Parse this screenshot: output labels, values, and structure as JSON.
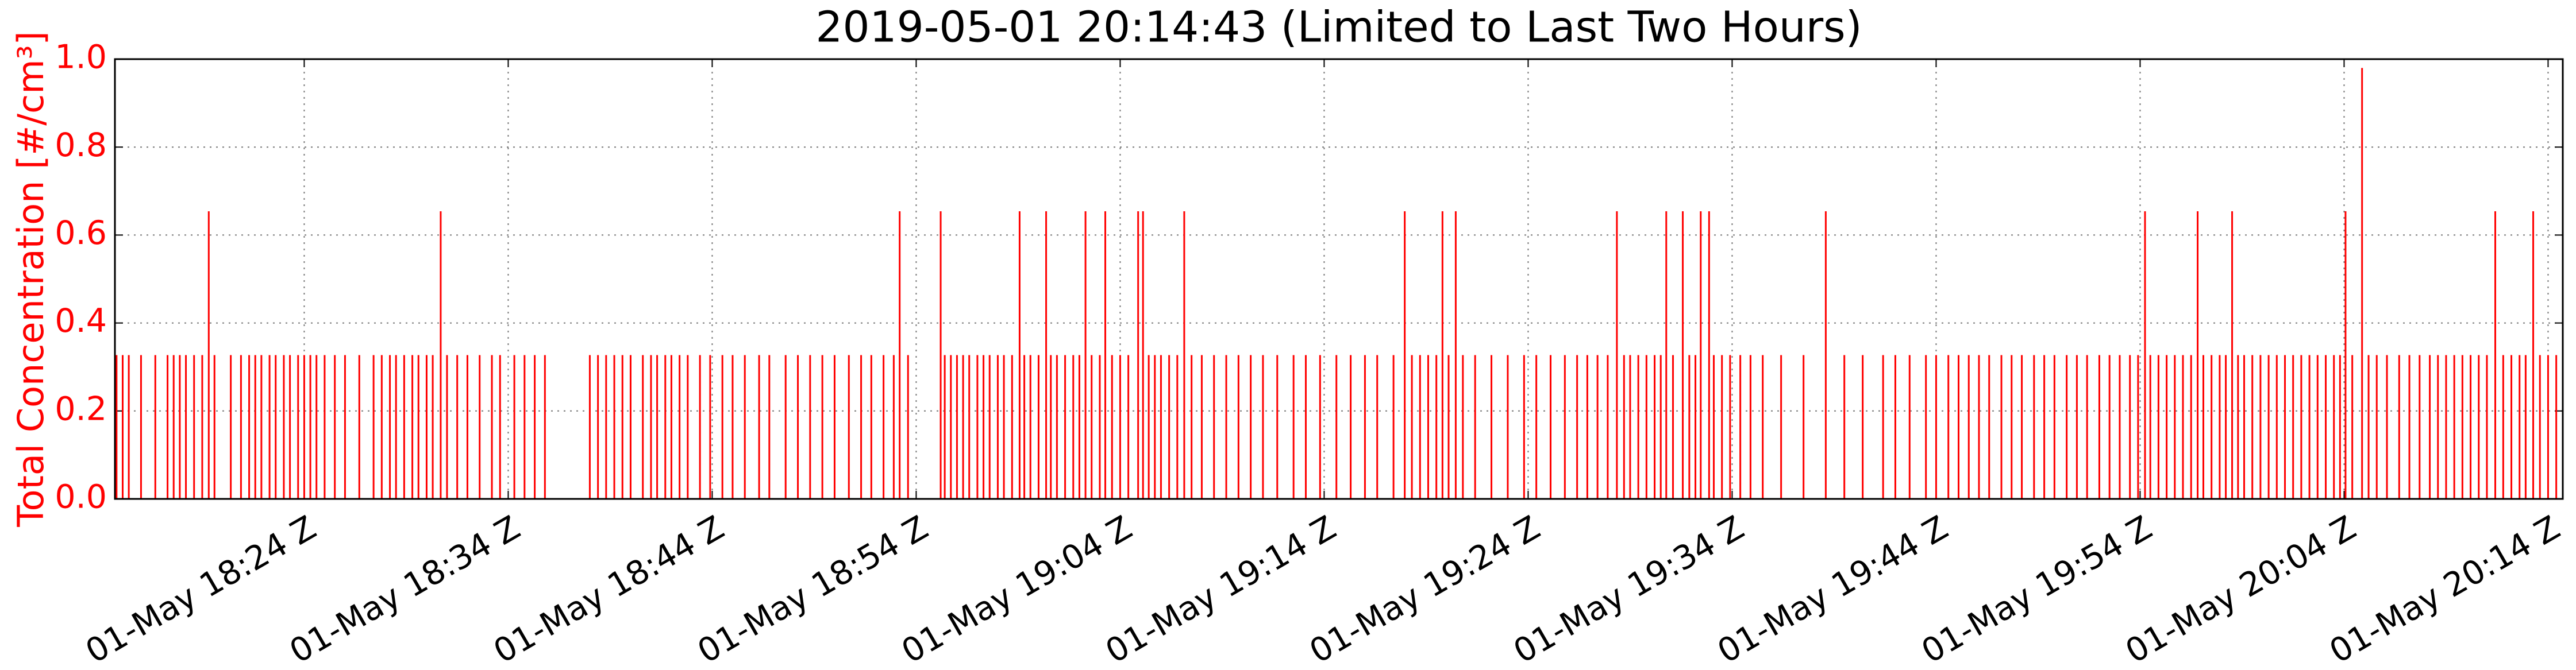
{
  "chart_data": {
    "type": "stem",
    "title": "2019-05-01 20:14:43 (Limited to Last Two Hours)",
    "y_label": "Total Concentration [#/cm³]",
    "color": "#ff0000",
    "label_color": "#ff0000",
    "grid": true,
    "xlim": [
      1094.72,
      1214.72
    ],
    "ylim": [
      0,
      1
    ],
    "yticks": [
      {
        "value": 0,
        "label": "0.0"
      },
      0.2,
      0.4,
      0.6,
      0.8,
      {
        "value": 1,
        "label": "1.0"
      }
    ],
    "xticks": [
      {
        "value": 1104,
        "label": "01-May 18:24 Z"
      },
      {
        "value": 1114,
        "label": "01-May 18:34 Z"
      },
      {
        "value": 1124,
        "label": "01-May 18:44 Z"
      },
      {
        "value": 1134,
        "label": "01-May 18:54 Z"
      },
      {
        "value": 1144,
        "label": "01-May 19:04 Z"
      },
      {
        "value": 1154,
        "label": "01-May 19:14 Z"
      },
      {
        "value": 1164,
        "label": "01-May 19:24 Z"
      },
      {
        "value": 1174,
        "label": "01-May 19:34 Z"
      },
      {
        "value": 1184,
        "label": "01-May 19:44 Z"
      },
      {
        "value": 1194,
        "label": "01-May 19:54 Z"
      },
      {
        "value": 1204,
        "label": "01-May 20:04 Z"
      },
      {
        "value": 1214,
        "label": "01-May 20:14 Z"
      }
    ],
    "x": [
      1094.8,
      1095.1,
      1095.4,
      1096.0,
      1096.7,
      1097.3,
      1097.6,
      1097.9,
      1098.2,
      1098.6,
      1099.0,
      1099.6,
      1100.4,
      1100.9,
      1101.3,
      1101.6,
      1101.9,
      1102.3,
      1102.6,
      1103.0,
      1103.3,
      1103.7,
      1104.0,
      1104.3,
      1104.6,
      1105.0,
      1105.5,
      1106.0,
      1106.7,
      1107.4,
      1107.8,
      1108.2,
      1108.5,
      1108.9,
      1109.3,
      1109.6,
      1110.0,
      1110.3,
      1111.0,
      1111.5,
      1112.0,
      1112.6,
      1113.2,
      1113.6,
      1114.3,
      1114.8,
      1115.3,
      1115.8,
      1118.0,
      1118.4,
      1118.8,
      1119.2,
      1119.6,
      1120.0,
      1120.6,
      1121.0,
      1121.3,
      1121.7,
      1122.0,
      1122.4,
      1122.8,
      1123.4,
      1123.9,
      1124.5,
      1125.0,
      1125.6,
      1126.3,
      1126.8,
      1127.6,
      1128.2,
      1128.8,
      1129.4,
      1130.0,
      1130.7,
      1131.3,
      1131.8,
      1132.4,
      1132.9,
      1133.6,
      1135.4,
      1135.7,
      1136.0,
      1136.3,
      1136.6,
      1137.0,
      1137.3,
      1137.6,
      1138.0,
      1138.3,
      1138.7,
      1139.3,
      1139.6,
      1140.0,
      1140.6,
      1140.9,
      1141.3,
      1141.7,
      1142.0,
      1142.6,
      1143.0,
      1143.6,
      1144.0,
      1144.4,
      1145.4,
      1145.7,
      1146.0,
      1146.4,
      1146.8,
      1147.5,
      1148.0,
      1148.6,
      1149.2,
      1149.8,
      1150.4,
      1151.0,
      1151.7,
      1152.5,
      1153.1,
      1153.8,
      1154.6,
      1155.3,
      1156.0,
      1156.6,
      1157.4,
      1158.3,
      1158.7,
      1159.1,
      1159.5,
      1160.1,
      1160.8,
      1161.4,
      1162.2,
      1163.0,
      1163.8,
      1164.4,
      1165.1,
      1165.8,
      1166.4,
      1166.9,
      1167.4,
      1167.9,
      1168.7,
      1169.0,
      1169.4,
      1169.8,
      1170.2,
      1170.5,
      1171.1,
      1171.9,
      1172.2,
      1173.1,
      1173.5,
      1173.9,
      1174.4,
      1174.9,
      1175.5,
      1176.4,
      1177.5,
      1179.5,
      1180.4,
      1181.4,
      1182.0,
      1182.7,
      1183.5,
      1184.0,
      1184.6,
      1185.1,
      1185.6,
      1186.1,
      1186.6,
      1187.2,
      1187.7,
      1188.2,
      1188.8,
      1189.3,
      1189.8,
      1190.4,
      1190.9,
      1191.4,
      1192.0,
      1192.5,
      1193.0,
      1193.5,
      1193.9,
      1194.5,
      1194.9,
      1195.3,
      1195.7,
      1196.1,
      1196.5,
      1197.1,
      1197.5,
      1197.9,
      1198.2,
      1198.8,
      1199.1,
      1199.5,
      1199.9,
      1200.3,
      1200.7,
      1201.1,
      1201.5,
      1201.9,
      1202.3,
      1202.7,
      1203.1,
      1203.5,
      1203.8,
      1204.4,
      1205.2,
      1205.6,
      1206.1,
      1206.7,
      1207.2,
      1207.7,
      1208.2,
      1208.6,
      1209.0,
      1209.4,
      1209.8,
      1210.2,
      1210.6,
      1211.0,
      1211.8,
      1212.2,
      1212.6,
      1212.9,
      1213.6,
      1214.0,
      1214.4,
      1099.32,
      1110.69,
      1133.19,
      1135.2,
      1139.07,
      1140.37,
      1142.3,
      1143.27,
      1144.88,
      1145.12,
      1147.14,
      1157.95,
      1159.8,
      1160.45,
      1168.35,
      1170.77,
      1171.58,
      1172.46,
      1172.87,
      1178.59,
      1194.24,
      1196.82,
      1198.51,
      1204.07,
      1204.88,
      1211.41,
      1213.27
    ],
    "values": [
      0.327,
      0.327,
      0.327,
      0.327,
      0.327,
      0.327,
      0.327,
      0.327,
      0.327,
      0.327,
      0.327,
      0.327,
      0.327,
      0.327,
      0.327,
      0.327,
      0.327,
      0.327,
      0.327,
      0.327,
      0.327,
      0.327,
      0.327,
      0.327,
      0.327,
      0.327,
      0.327,
      0.327,
      0.327,
      0.327,
      0.327,
      0.327,
      0.327,
      0.327,
      0.327,
      0.327,
      0.327,
      0.327,
      0.327,
      0.327,
      0.327,
      0.327,
      0.327,
      0.327,
      0.327,
      0.327,
      0.327,
      0.327,
      0.327,
      0.327,
      0.327,
      0.327,
      0.327,
      0.327,
      0.327,
      0.327,
      0.327,
      0.327,
      0.327,
      0.327,
      0.327,
      0.327,
      0.327,
      0.327,
      0.327,
      0.327,
      0.327,
      0.327,
      0.327,
      0.327,
      0.327,
      0.327,
      0.327,
      0.327,
      0.327,
      0.327,
      0.327,
      0.327,
      0.327,
      0.327,
      0.327,
      0.327,
      0.327,
      0.327,
      0.327,
      0.327,
      0.327,
      0.327,
      0.327,
      0.327,
      0.327,
      0.327,
      0.327,
      0.327,
      0.327,
      0.327,
      0.327,
      0.327,
      0.327,
      0.327,
      0.327,
      0.327,
      0.327,
      0.327,
      0.327,
      0.327,
      0.327,
      0.327,
      0.327,
      0.327,
      0.327,
      0.327,
      0.327,
      0.327,
      0.327,
      0.327,
      0.327,
      0.327,
      0.327,
      0.327,
      0.327,
      0.327,
      0.327,
      0.327,
      0.327,
      0.327,
      0.327,
      0.327,
      0.327,
      0.327,
      0.327,
      0.327,
      0.327,
      0.327,
      0.327,
      0.327,
      0.327,
      0.327,
      0.327,
      0.327,
      0.327,
      0.327,
      0.327,
      0.327,
      0.327,
      0.327,
      0.327,
      0.327,
      0.327,
      0.327,
      0.327,
      0.327,
      0.327,
      0.327,
      0.327,
      0.327,
      0.327,
      0.327,
      0.327,
      0.327,
      0.327,
      0.327,
      0.327,
      0.327,
      0.327,
      0.327,
      0.327,
      0.327,
      0.327,
      0.327,
      0.327,
      0.327,
      0.327,
      0.327,
      0.327,
      0.327,
      0.327,
      0.327,
      0.327,
      0.327,
      0.327,
      0.327,
      0.327,
      0.327,
      0.327,
      0.327,
      0.327,
      0.327,
      0.327,
      0.327,
      0.327,
      0.327,
      0.327,
      0.327,
      0.327,
      0.327,
      0.327,
      0.327,
      0.327,
      0.327,
      0.327,
      0.327,
      0.327,
      0.327,
      0.327,
      0.327,
      0.327,
      0.327,
      0.327,
      0.327,
      0.327,
      0.327,
      0.327,
      0.327,
      0.327,
      0.327,
      0.327,
      0.327,
      0.327,
      0.327,
      0.327,
      0.327,
      0.327,
      0.327,
      0.327,
      0.327,
      0.327,
      0.327,
      0.327,
      0.327,
      0.654,
      0.654,
      0.654,
      0.654,
      0.654,
      0.654,
      0.654,
      0.654,
      0.654,
      0.654,
      0.654,
      0.654,
      0.654,
      0.654,
      0.654,
      0.654,
      0.654,
      0.654,
      0.654,
      0.654,
      0.654,
      0.654,
      0.654,
      0.654,
      0.98,
      0.654,
      0.654
    ]
  }
}
